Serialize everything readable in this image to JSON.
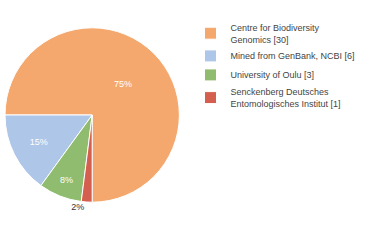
{
  "chart_data": {
    "type": "pie",
    "categories": [
      "Centre for Biodiversity\nGenomics [30]",
      "Mined from GenBank, NCBI [6]",
      "University of Oulu [3]",
      "Senckenberg Deutsches\nEntomologisches Institut [1]"
    ],
    "values": [
      75,
      15,
      8,
      2
    ],
    "value_labels": [
      "75%",
      "15%",
      "8%",
      "2%"
    ],
    "colors": [
      "#f5a86e",
      "#aec6e8",
      "#8fbc6f",
      "#d45f4e"
    ],
    "data_labels": true,
    "legend": "upper right"
  }
}
